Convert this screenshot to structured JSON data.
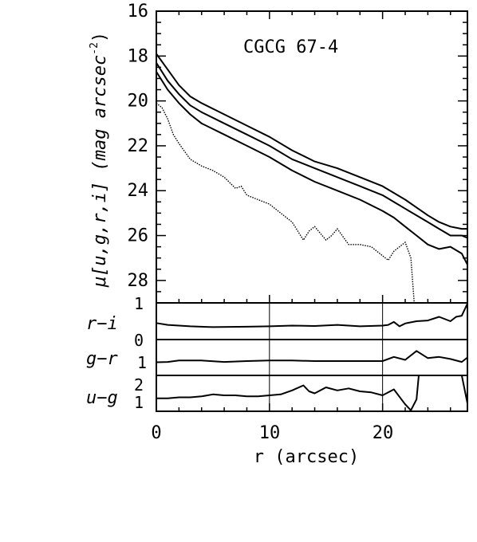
{
  "chart_data": [
    {
      "type": "line",
      "panel": "surface-brightness",
      "title": "CGCG 67-4",
      "ylabel": "μ[u,g,r,i] (mag arcsec",
      "ylabel_sup": "-2",
      "ylabel_close": ")",
      "xlim": [
        0,
        27.5
      ],
      "ylim": [
        29,
        16
      ],
      "yticks": [
        "16",
        "18",
        "20",
        "22",
        "24",
        "26",
        "28"
      ],
      "series": [
        {
          "style": "solid",
          "x": [
            0,
            1,
            2,
            3,
            4,
            6,
            8,
            10,
            12,
            14,
            16,
            18,
            20,
            22,
            24,
            25,
            26,
            27,
            27.5
          ],
          "y": [
            17.9,
            18.6,
            19.3,
            19.8,
            20.1,
            20.6,
            21.1,
            21.6,
            22.2,
            22.7,
            23.0,
            23.4,
            23.8,
            24.4,
            25.1,
            25.4,
            25.6,
            25.7,
            25.7
          ]
        },
        {
          "style": "solid",
          "x": [
            0,
            1,
            2,
            3,
            4,
            6,
            8,
            10,
            12,
            14,
            16,
            18,
            20,
            22,
            24,
            25,
            26,
            27,
            27.5
          ],
          "y": [
            18.3,
            19.1,
            19.7,
            20.2,
            20.5,
            21.0,
            21.5,
            22.0,
            22.6,
            23.0,
            23.4,
            23.8,
            24.2,
            24.8,
            25.4,
            25.7,
            26.0,
            26.0,
            26.1
          ]
        },
        {
          "style": "solid",
          "x": [
            0,
            1,
            2,
            3,
            4,
            6,
            8,
            10,
            12,
            14,
            16,
            18,
            20,
            21,
            22,
            23,
            24,
            25,
            26,
            27,
            27.5
          ],
          "y": [
            18.7,
            19.5,
            20.1,
            20.6,
            21.0,
            21.5,
            22.0,
            22.5,
            23.1,
            23.6,
            24.0,
            24.4,
            24.9,
            25.2,
            25.6,
            26.0,
            26.4,
            26.6,
            26.5,
            26.8,
            27.3
          ]
        },
        {
          "style": "dotted",
          "x": [
            0,
            0.5,
            1,
            1.5,
            2,
            3,
            4,
            5,
            6,
            7,
            7.5,
            8,
            9,
            10,
            11,
            12,
            13,
            13.5,
            14,
            15,
            15.5,
            16,
            17,
            18,
            19,
            20,
            20.5,
            21,
            22,
            22.5,
            22.8
          ],
          "y": [
            20.1,
            20.3,
            20.8,
            21.5,
            21.9,
            22.6,
            22.9,
            23.1,
            23.4,
            23.9,
            23.8,
            24.2,
            24.4,
            24.6,
            25.0,
            25.4,
            26.2,
            25.8,
            25.6,
            26.2,
            26.0,
            25.7,
            26.4,
            26.4,
            26.5,
            26.9,
            27.1,
            26.7,
            26.3,
            27.0,
            29.0
          ]
        }
      ]
    },
    {
      "type": "line",
      "panel": "r-i",
      "ylabel": "r−i",
      "ylim": [
        0,
        1
      ],
      "yticks": [
        "1",
        "0"
      ],
      "series": [
        {
          "style": "solid",
          "x": [
            0,
            1,
            2,
            3,
            5,
            8,
            10,
            12,
            14,
            16,
            18,
            20,
            20.5,
            21,
            21.5,
            22,
            23,
            24,
            25,
            26,
            26.5,
            27,
            27.5
          ],
          "y": [
            0.45,
            0.4,
            0.38,
            0.36,
            0.34,
            0.35,
            0.36,
            0.38,
            0.37,
            0.4,
            0.36,
            0.38,
            0.4,
            0.48,
            0.36,
            0.44,
            0.5,
            0.52,
            0.62,
            0.5,
            0.62,
            0.65,
            0.98
          ]
        }
      ]
    },
    {
      "type": "line",
      "panel": "g-r",
      "ylabel": "g−r",
      "ylim": [
        0,
        1.2
      ],
      "yticks": [
        "1"
      ],
      "series": [
        {
          "style": "solid",
          "x": [
            0,
            1,
            2,
            4,
            6,
            8,
            10,
            12,
            14,
            16,
            18,
            20,
            21,
            22,
            23,
            24,
            25,
            26,
            27,
            27.5
          ],
          "y": [
            0.44,
            0.45,
            0.5,
            0.5,
            0.45,
            0.48,
            0.5,
            0.5,
            0.48,
            0.48,
            0.48,
            0.48,
            0.62,
            0.52,
            0.82,
            0.58,
            0.62,
            0.55,
            0.45,
            0.6
          ]
        }
      ]
    },
    {
      "type": "line",
      "panel": "u-g",
      "ylabel": "u−g",
      "ylim": [
        0.5,
        2.3
      ],
      "yticks": [
        "2",
        "1"
      ],
      "series": [
        {
          "style": "solid",
          "x": [
            0,
            1,
            2,
            3,
            4,
            5,
            6,
            7,
            8,
            9,
            10,
            11,
            12,
            13,
            13.5,
            14,
            15,
            16,
            17,
            18,
            19,
            20,
            21,
            22,
            22.5,
            23,
            23.2
          ],
          "y": [
            1.15,
            1.15,
            1.2,
            1.2,
            1.25,
            1.35,
            1.3,
            1.3,
            1.25,
            1.25,
            1.3,
            1.35,
            1.55,
            1.8,
            1.5,
            1.4,
            1.7,
            1.55,
            1.65,
            1.5,
            1.45,
            1.3,
            1.6,
            0.85,
            0.55,
            1.1,
            2.3
          ]
        },
        {
          "style": "solid",
          "x": [
            27,
            27.5
          ],
          "y": [
            2.3,
            0.9
          ]
        }
      ]
    }
  ],
  "axes": {
    "xlabel": "r (arcsec)",
    "xticks": [
      "0",
      "10",
      "20"
    ]
  }
}
